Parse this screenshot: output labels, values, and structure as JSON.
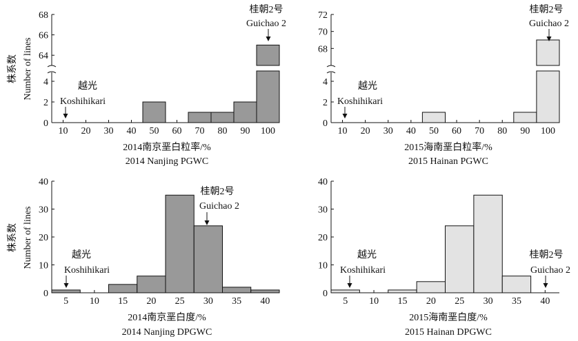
{
  "colors": {
    "dark_bar": "#999999",
    "light_bar": "#e3e3e3",
    "axis": "#111111"
  },
  "chart_data": [
    {
      "type": "bar",
      "id": "nanjing-pgwc",
      "title_cn": "2014南京垩白粒率/%",
      "title_en": "2014 Nanjing PGWC",
      "ylabel_cn": "株系数",
      "ylabel_en": "Number of lines",
      "categories": [
        "10",
        "20",
        "30",
        "40",
        "50",
        "60",
        "70",
        "80",
        "90",
        "100"
      ],
      "values": [
        0,
        0,
        0,
        0,
        2,
        0,
        1,
        1,
        2,
        65
      ],
      "axis_break": {
        "lower_ticks": [
          "0",
          "2",
          "4"
        ],
        "upper_ticks": [
          "64",
          "66",
          "68"
        ],
        "lower_max": 5,
        "upper_range": [
          63,
          68
        ]
      },
      "annotations": [
        {
          "category": "10",
          "cn": "越光",
          "en": "Koshihikari"
        },
        {
          "category": "100",
          "cn": "桂朝2号",
          "en": "Guichao 2"
        }
      ]
    },
    {
      "type": "bar",
      "id": "hainan-pgwc",
      "title_cn": "2015海南垩白粒率/%",
      "title_en": "2015 Hainan PGWC",
      "categories": [
        "10",
        "20",
        "30",
        "40",
        "50",
        "60",
        "70",
        "80",
        "90",
        "100"
      ],
      "values": [
        0,
        0,
        0,
        0,
        1,
        0,
        0,
        0,
        1,
        69
      ],
      "axis_break": {
        "lower_ticks": [
          "0",
          "2",
          "4"
        ],
        "upper_ticks": [
          "68",
          "70",
          "72"
        ],
        "lower_max": 5,
        "upper_range": [
          66,
          72
        ]
      },
      "annotations": [
        {
          "category": "10",
          "cn": "越光",
          "en": "Koshihikari"
        },
        {
          "category": "100",
          "cn": "桂朝2号",
          "en": "Guichao 2"
        }
      ]
    },
    {
      "type": "bar",
      "id": "nanjing-dpgwc",
      "title_cn": "2014南京垩白度/%",
      "title_en": "2014 Nanjing DPGWC",
      "ylabel_cn": "株系数",
      "ylabel_en": "Number of lines",
      "categories": [
        "5",
        "10",
        "15",
        "20",
        "25",
        "30",
        "35",
        "40"
      ],
      "values": [
        1,
        0,
        3,
        6,
        35,
        24,
        2,
        1
      ],
      "ylim": [
        0,
        40
      ],
      "yticks": [
        "0",
        "10",
        "20",
        "30",
        "40"
      ],
      "annotations": [
        {
          "category": "5",
          "cn": "越光",
          "en": "Koshihikari"
        },
        {
          "category": "30",
          "cn": "桂朝2号",
          "en": "Guichao 2"
        }
      ]
    },
    {
      "type": "bar",
      "id": "hainan-dpgwc",
      "title_cn": "2015海南垩白度/%",
      "title_en": "2015 Hainan DPGWC",
      "categories": [
        "5",
        "10",
        "15",
        "20",
        "25",
        "30",
        "35",
        "40"
      ],
      "values": [
        1,
        0,
        1,
        4,
        24,
        35,
        6,
        0
      ],
      "ylim": [
        0,
        40
      ],
      "yticks": [
        "0",
        "10",
        "20",
        "30",
        "40"
      ],
      "annotations": [
        {
          "category": "5",
          "cn": "越光",
          "en": "Koshihikari"
        },
        {
          "category": "40",
          "cn": "桂朝2号",
          "en": "Guichao 2"
        }
      ]
    }
  ]
}
